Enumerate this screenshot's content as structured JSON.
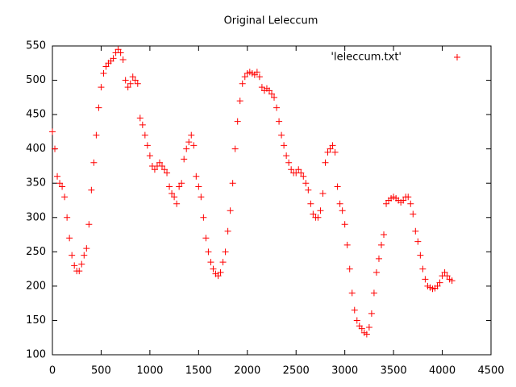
{
  "chart_data": {
    "type": "scatter",
    "title": "Original Leleccum",
    "x": [
      0,
      25,
      50,
      75,
      100,
      125,
      150,
      175,
      200,
      225,
      250,
      275,
      300,
      325,
      350,
      375,
      400,
      425,
      450,
      475,
      500,
      525,
      550,
      575,
      600,
      625,
      650,
      675,
      700,
      725,
      750,
      775,
      800,
      825,
      850,
      875,
      900,
      925,
      950,
      975,
      1000,
      1025,
      1050,
      1075,
      1100,
      1125,
      1150,
      1175,
      1200,
      1225,
      1250,
      1275,
      1300,
      1325,
      1350,
      1375,
      1400,
      1425,
      1450,
      1475,
      1500,
      1525,
      1550,
      1575,
      1600,
      1625,
      1650,
      1675,
      1700,
      1725,
      1750,
      1775,
      1800,
      1825,
      1850,
      1875,
      1900,
      1925,
      1950,
      1975,
      2000,
      2025,
      2050,
      2075,
      2100,
      2125,
      2150,
      2175,
      2200,
      2225,
      2250,
      2275,
      2300,
      2325,
      2350,
      2375,
      2400,
      2425,
      2450,
      2475,
      2500,
      2525,
      2550,
      2575,
      2600,
      2625,
      2650,
      2675,
      2700,
      2725,
      2750,
      2775,
      2800,
      2825,
      2850,
      2875,
      2900,
      2925,
      2950,
      2975,
      3000,
      3025,
      3050,
      3075,
      3100,
      3125,
      3150,
      3175,
      3200,
      3225,
      3250,
      3275,
      3300,
      3325,
      3350,
      3375,
      3400,
      3425,
      3450,
      3475,
      3500,
      3525,
      3550,
      3575,
      3600,
      3625,
      3650,
      3675,
      3700,
      3725,
      3750,
      3775,
      3800,
      3825,
      3850,
      3875,
      3900,
      3925,
      3950,
      3975,
      4000,
      4025,
      4050,
      4075,
      4100
    ],
    "series": [
      {
        "name": "'leleccum.txt'",
        "color": "#ff0000",
        "values": [
          425,
          400,
          360,
          350,
          345,
          330,
          300,
          270,
          245,
          230,
          222,
          222,
          232,
          245,
          255,
          290,
          340,
          380,
          420,
          460,
          490,
          510,
          520,
          525,
          528,
          532,
          540,
          545,
          540,
          530,
          500,
          490,
          495,
          505,
          500,
          495,
          445,
          435,
          420,
          405,
          390,
          375,
          370,
          375,
          380,
          375,
          370,
          365,
          345,
          335,
          330,
          320,
          345,
          350,
          385,
          400,
          410,
          420,
          405,
          360,
          345,
          330,
          300,
          270,
          250,
          235,
          225,
          218,
          215,
          220,
          235,
          250,
          280,
          310,
          350,
          400,
          440,
          470,
          495,
          505,
          510,
          512,
          510,
          508,
          512,
          505,
          490,
          485,
          488,
          485,
          480,
          475,
          460,
          440,
          420,
          405,
          390,
          380,
          370,
          365,
          365,
          370,
          365,
          360,
          350,
          340,
          320,
          305,
          300,
          300,
          310,
          335,
          380,
          395,
          400,
          405,
          395,
          345,
          320,
          310,
          290,
          260,
          225,
          190,
          165,
          150,
          142,
          138,
          132,
          130,
          140,
          160,
          190,
          220,
          240,
          260,
          275,
          320,
          325,
          328,
          330,
          328,
          325,
          322,
          325,
          330,
          330,
          320,
          305,
          280,
          265,
          245,
          225,
          210,
          200,
          198,
          196,
          197,
          200,
          205,
          215,
          220,
          215,
          210,
          208
        ]
      }
    ],
    "xlim": [
      0,
      4500
    ],
    "ylim": [
      100,
      550
    ],
    "xticks": [
      0,
      500,
      1000,
      1500,
      2000,
      2500,
      3000,
      3500,
      4000,
      4500
    ],
    "yticks": [
      100,
      150,
      200,
      250,
      300,
      350,
      400,
      450,
      500,
      550
    ],
    "legend": "top right"
  }
}
